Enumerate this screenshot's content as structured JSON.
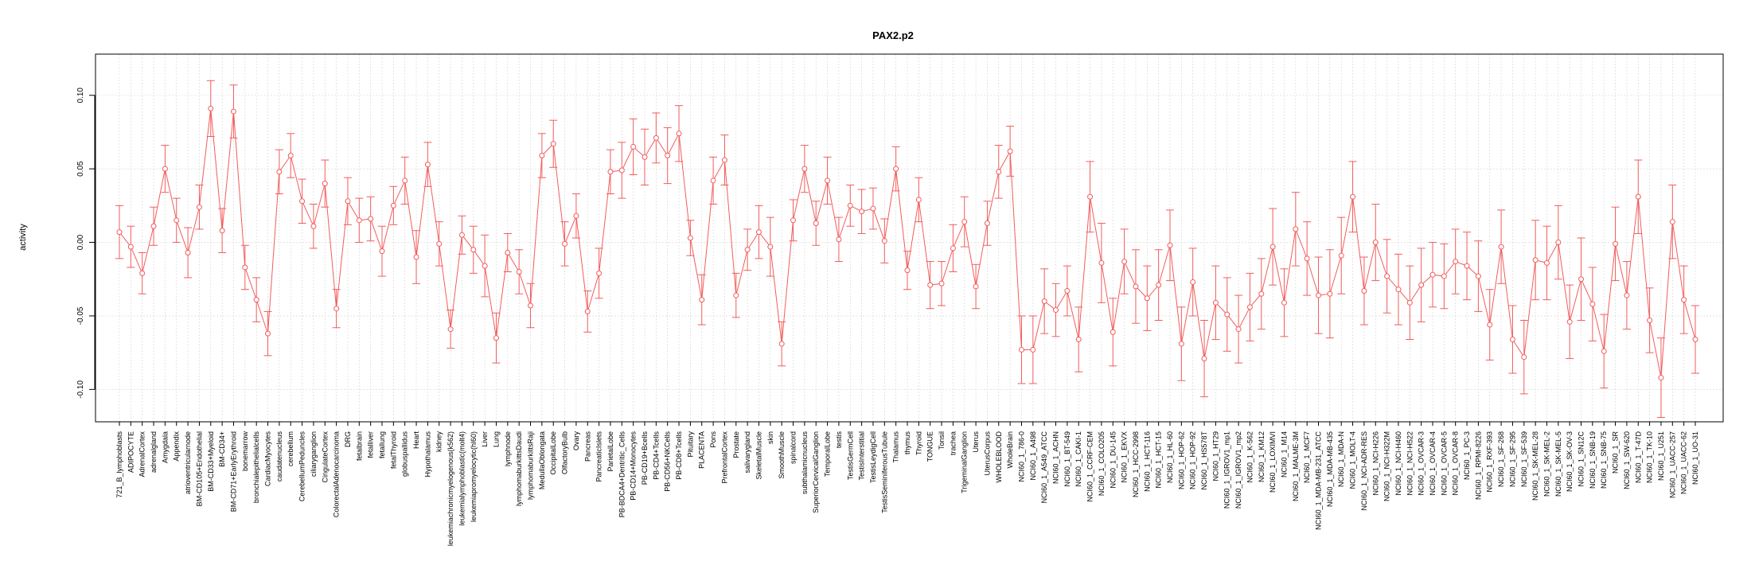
{
  "chart_data": {
    "type": "line",
    "title": "PAX2.p2",
    "xlabel": "",
    "ylabel": "activity",
    "ylim": [
      -0.122,
      0.128
    ],
    "yticks": [
      -0.1,
      -0.05,
      0.0,
      0.05,
      0.1
    ],
    "ytick_labels": [
      "-0.10",
      "-0.05",
      "0.00",
      "0.05",
      "0.10"
    ],
    "grid": true,
    "colors": {
      "line": "#f25c5c",
      "grid": "#d3d3d3",
      "axis": "#000000"
    },
    "categories": [
      "721_B_lymphoblasts",
      "ADIPOCYTE",
      "AdrenalCortex",
      "adrenalgland",
      "Amygdala",
      "Appendix",
      "atrioventricularnode",
      "BM-CD105+Endothelial",
      "BM-CD33+Myeloid",
      "BM-CD34+",
      "BM-CD71+EarlyErythroid",
      "bonemarrow",
      "bronchialepithelialcells",
      "CardiacMyocytes",
      "caudatenucleus",
      "cerebellum",
      "CerebellumPeduncles",
      "ciliaryganglion",
      "CingulateCortex",
      "ColorectalAdenocarcinoma",
      "DRG",
      "fetalbrain",
      "fetalliver",
      "fetallung",
      "fetalThyroid",
      "globuspallidus",
      "Heart",
      "Hypothalamus",
      "kidney",
      "leukemiachronicmyelogenous(k562)",
      "leukemialymphoblastic(molt4)",
      "leukemiapromyelocytic(hl60)",
      "Liver",
      "Lung",
      "lymphnode",
      "lymphomaburkittsDaudi",
      "lymphomaburkittsRaji",
      "MedullaOblongata",
      "OccipitalLobe",
      "OlfactoryBulb",
      "Ovary",
      "Pancreas",
      "PancreaticIslets",
      "ParietalLobe",
      "PB-BDCA4+Dentritic_Cells",
      "PB-CD14+Monocytes",
      "PB-CD19+Bcells",
      "PB-CD4+Tcells",
      "PB-CD56+NKCells",
      "PB-CD8+Tcells",
      "Pituitary",
      "PLACENTA",
      "Pons",
      "PrefrontalCortex",
      "Prostate",
      "salivarygland",
      "SkeletalMuscle",
      "skin",
      "SmoothMuscle",
      "spinalcord",
      "subthalamicnucleus",
      "SuperiorCervicalGanglion",
      "TemporalLobe",
      "testis",
      "TestisGermCell",
      "TestisInterstitial",
      "TestisLeydigCell",
      "TestisSeminiferousTubule",
      "Thalamus",
      "thymus",
      "Thyroid",
      "TONGUE",
      "Tonsil",
      "trachea",
      "TrigeminalGanglion",
      "Uterus",
      "UterusCorpus",
      "WHOLEBLOOD",
      "WholeBrain",
      "NCI60_1_786-0",
      "NCI60_1_A498",
      "NCI60_1_A549_ATCC",
      "NCI60_1_ACHN",
      "NCI60_1_BT-549",
      "NCI60_1_CAKI-1",
      "NCI60_1_CCRF-CEM",
      "NCI60_1_COLO205",
      "NCI60_1_DU-145",
      "NCI60_1_EKVX",
      "NCI60_1_HCC-2998",
      "NCI60_1_HCT-116",
      "NCI60_1_HCT-15",
      "NCI60_1_HL-60",
      "NCI60_1_HOP-62",
      "NCI60_1_HOP-92",
      "NCI60_1_HS578T",
      "NCI60_1_HT29",
      "NCI60_1_IGROV1_mp1",
      "NCI60_1_IGROV1_mp2",
      "NCI60_1_K-562",
      "NCI60_1_KM12",
      "NCI60_1_LOXIMVI",
      "NCI60_1_M14",
      "NCI60_1_MALME-3M",
      "NCI60_1_MCF7",
      "NCI60_1_MDA-MB-231_ATCC",
      "NCI60_1_MDA-MB-435",
      "NCI60_1_MDA-N",
      "NCI60_1_MOLT-4",
      "NCI60_1_NCI-ADR-RES",
      "NCI60_1_NCI-H226",
      "NCI60_1_NCI-H322M",
      "NCI60_1_NCI-H460",
      "NCI60_1_NCI-H522",
      "NCI60_1_OVCAR-3",
      "NCI60_1_OVCAR-4",
      "NCI60_1_OVCAR-5",
      "NCI60_1_OVCAR-8",
      "NCI60_1_PC-3",
      "NCI60_1_RPMI-8226",
      "NCI60_1_RXF-393",
      "NCI60_1_SF-268",
      "NCI60_1_SF-295",
      "NCI60_1_SF-539",
      "NCI60_1_SK-MEL-28",
      "NCI60_1_SK-MEL-2",
      "NCI60_1_SK-MEL-5",
      "NCI60_1_SK-OV-3",
      "NCI60_1_SN12C",
      "NCI60_1_SNB-19",
      "NCI60_1_SNB-75",
      "NCI60_1_SR",
      "NCI60_1_SW-620",
      "NCI60_1_T-47D",
      "NCI60_1_TK-10",
      "NCI60_1_U251",
      "NCI60_1_UACC-257",
      "NCI60_1_UACC-62",
      "NCI60_1_UO-31"
    ],
    "values": [
      0.007,
      -0.003,
      -0.021,
      0.011,
      0.05,
      0.015,
      -0.007,
      0.024,
      0.091,
      0.008,
      0.089,
      -0.017,
      -0.039,
      -0.062,
      0.048,
      0.059,
      0.028,
      0.011,
      0.04,
      -0.045,
      0.028,
      0.015,
      0.016,
      -0.006,
      0.025,
      0.042,
      -0.01,
      0.053,
      -0.001,
      -0.059,
      0.005,
      -0.005,
      -0.016,
      -0.065,
      -0.007,
      -0.02,
      -0.043,
      0.059,
      0.067,
      -0.001,
      0.018,
      -0.047,
      -0.021,
      0.048,
      0.049,
      0.065,
      0.058,
      0.071,
      0.059,
      0.074,
      0.003,
      -0.039,
      0.042,
      0.056,
      -0.036,
      -0.005,
      0.007,
      -0.003,
      -0.069,
      0.015,
      0.05,
      0.013,
      0.042,
      0.002,
      0.025,
      0.021,
      0.023,
      0.001,
      0.05,
      -0.019,
      0.029,
      -0.029,
      -0.028,
      -0.004,
      0.014,
      -0.03,
      0.013,
      0.048,
      0.062,
      -0.073,
      -0.073,
      -0.04,
      -0.046,
      -0.033,
      -0.066,
      0.031,
      -0.014,
      -0.061,
      -0.013,
      -0.03,
      -0.038,
      -0.029,
      -0.002,
      -0.069,
      -0.027,
      -0.079,
      -0.041,
      -0.049,
      -0.059,
      -0.044,
      -0.035,
      -0.003,
      -0.041,
      0.009,
      -0.011,
      -0.036,
      -0.035,
      -0.009,
      0.031,
      -0.033,
      0.0,
      -0.023,
      -0.032,
      -0.041,
      -0.029,
      -0.022,
      -0.023,
      -0.013,
      -0.016,
      -0.023,
      -0.056,
      -0.003,
      -0.066,
      -0.078,
      -0.012,
      -0.014,
      0.0,
      -0.054,
      -0.025,
      -0.042,
      -0.074,
      -0.001,
      -0.036,
      0.031,
      -0.053,
      -0.092,
      0.014,
      -0.039,
      -0.066
    ],
    "errors": [
      0.018,
      0.014,
      0.014,
      0.013,
      0.016,
      0.015,
      0.017,
      0.015,
      0.019,
      0.015,
      0.018,
      0.015,
      0.015,
      0.015,
      0.015,
      0.015,
      0.015,
      0.015,
      0.016,
      0.013,
      0.016,
      0.015,
      0.015,
      0.017,
      0.013,
      0.016,
      0.018,
      0.015,
      0.015,
      0.013,
      0.013,
      0.016,
      0.021,
      0.017,
      0.013,
      0.015,
      0.015,
      0.015,
      0.016,
      0.015,
      0.015,
      0.014,
      0.017,
      0.015,
      0.019,
      0.019,
      0.019,
      0.017,
      0.019,
      0.019,
      0.012,
      0.017,
      0.016,
      0.017,
      0.015,
      0.014,
      0.018,
      0.02,
      0.015,
      0.014,
      0.016,
      0.015,
      0.016,
      0.015,
      0.014,
      0.015,
      0.014,
      0.015,
      0.015,
      0.013,
      0.015,
      0.016,
      0.015,
      0.016,
      0.017,
      0.015,
      0.015,
      0.018,
      0.017,
      0.023,
      0.023,
      0.022,
      0.018,
      0.017,
      0.022,
      0.024,
      0.027,
      0.023,
      0.022,
      0.025,
      0.022,
      0.024,
      0.024,
      0.025,
      0.023,
      0.026,
      0.025,
      0.025,
      0.023,
      0.023,
      0.024,
      0.026,
      0.023,
      0.025,
      0.025,
      0.026,
      0.03,
      0.026,
      0.024,
      0.023,
      0.026,
      0.025,
      0.024,
      0.025,
      0.025,
      0.022,
      0.022,
      0.022,
      0.023,
      0.024,
      0.024,
      0.025,
      0.023,
      0.025,
      0.027,
      0.025,
      0.025,
      0.025,
      0.028,
      0.025,
      0.025,
      0.025,
      0.023,
      0.025,
      0.022,
      0.027,
      0.025,
      0.023,
      0.023
    ]
  }
}
